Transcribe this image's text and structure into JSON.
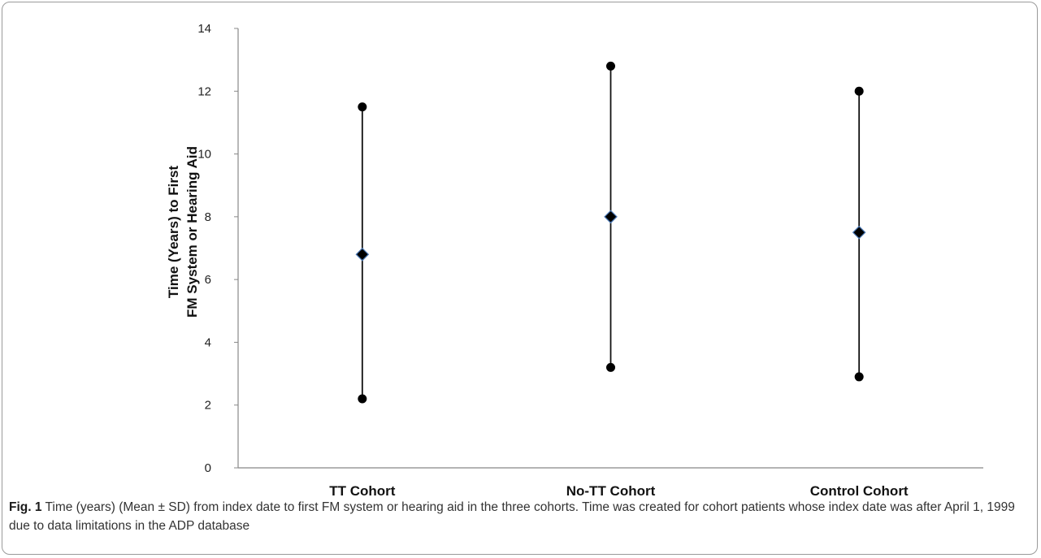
{
  "chart_data": {
    "type": "errorbar",
    "categories": [
      "TT Cohort",
      "No-TT Cohort",
      "Control Cohort"
    ],
    "series": [
      {
        "name": "Mean",
        "values": [
          6.8,
          8.0,
          7.5
        ]
      },
      {
        "name": "Mean + SD",
        "values": [
          11.5,
          12.8,
          12.0
        ]
      },
      {
        "name": "Mean - SD",
        "values": [
          2.2,
          3.2,
          2.9
        ]
      }
    ],
    "ylabel_line1": "Time (Years) to First",
    "ylabel_line2": "FM System or Hearing Aid",
    "ylim": [
      0,
      14
    ],
    "yticks": [
      "0",
      "2",
      "4",
      "6",
      "8",
      "10",
      "12",
      "14"
    ],
    "grid": false,
    "legend": "none",
    "colors": {
      "line": "#111111",
      "marker": "#000000",
      "marker_edge": "#4a78b5",
      "axis": "#888888"
    }
  },
  "caption": {
    "label": "Fig. 1",
    "text": " Time (years) (Mean ± SD) from index date to first FM system or hearing aid in the three cohorts. Time was created for cohort patients whose index date was after April 1, 1999 due to data limitations in the ADP database"
  }
}
